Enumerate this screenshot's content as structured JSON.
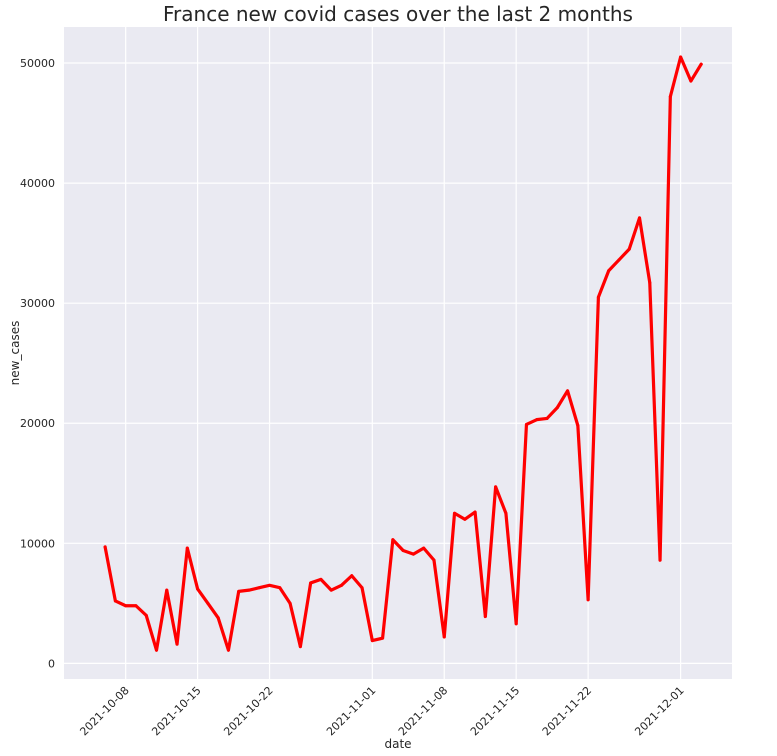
{
  "chart_data": {
    "type": "line",
    "title": "France new covid cases over the last 2 months",
    "xlabel": "date",
    "ylabel": "new_cases",
    "x_ticks": [
      "2021-10-08",
      "2021-10-15",
      "2021-10-22",
      "2021-11-01",
      "2021-11-08",
      "2021-11-15",
      "2021-11-22",
      "2021-12-01"
    ],
    "y_ticks": [
      0,
      10000,
      20000,
      30000,
      40000,
      50000
    ],
    "xlim": [
      "2021-10-02",
      "2021-12-06"
    ],
    "ylim": [
      -1300,
      53000
    ],
    "grid": true,
    "colors": {
      "line": "#ff0000",
      "plot_background": "#eaeaf2",
      "grid": "#ffffff"
    },
    "series": [
      {
        "x": [
          "2021-10-06",
          "2021-10-07",
          "2021-10-08",
          "2021-10-09",
          "2021-10-10",
          "2021-10-11",
          "2021-10-12",
          "2021-10-13",
          "2021-10-14",
          "2021-10-15",
          "2021-10-16",
          "2021-10-17",
          "2021-10-18",
          "2021-10-19",
          "2021-10-20",
          "2021-10-21",
          "2021-10-22",
          "2021-10-23",
          "2021-10-24",
          "2021-10-25",
          "2021-10-26",
          "2021-10-27",
          "2021-10-28",
          "2021-10-29",
          "2021-10-30",
          "2021-10-31",
          "2021-11-01",
          "2021-11-02",
          "2021-11-03",
          "2021-11-04",
          "2021-11-05",
          "2021-11-06",
          "2021-11-07",
          "2021-11-08",
          "2021-11-09",
          "2021-11-10",
          "2021-11-11",
          "2021-11-12",
          "2021-11-13",
          "2021-11-14",
          "2021-11-15",
          "2021-11-16",
          "2021-11-17",
          "2021-11-18",
          "2021-11-19",
          "2021-11-20",
          "2021-11-21",
          "2021-11-22",
          "2021-11-23",
          "2021-11-24",
          "2021-11-25",
          "2021-11-26",
          "2021-11-27",
          "2021-11-28",
          "2021-11-29",
          "2021-11-30",
          "2021-12-01",
          "2021-12-02",
          "2021-12-03"
        ],
        "y": [
          9700,
          5200,
          4800,
          4800,
          4000,
          1100,
          6100,
          1600,
          9600,
          6200,
          5000,
          3800,
          1100,
          6000,
          6100,
          6300,
          6500,
          6300,
          5000,
          1400,
          6700,
          7000,
          6100,
          6500,
          7300,
          6300,
          1900,
          2100,
          10300,
          9400,
          9100,
          9600,
          8600,
          2200,
          12500,
          12000,
          12600,
          3900,
          14700,
          12500,
          3300,
          19900,
          20300,
          20400,
          21300,
          22700,
          19800,
          5300,
          30500,
          32700,
          33600,
          34500,
          37100,
          31700,
          8600,
          47200,
          50500,
          48500,
          49900
        ]
      }
    ]
  }
}
